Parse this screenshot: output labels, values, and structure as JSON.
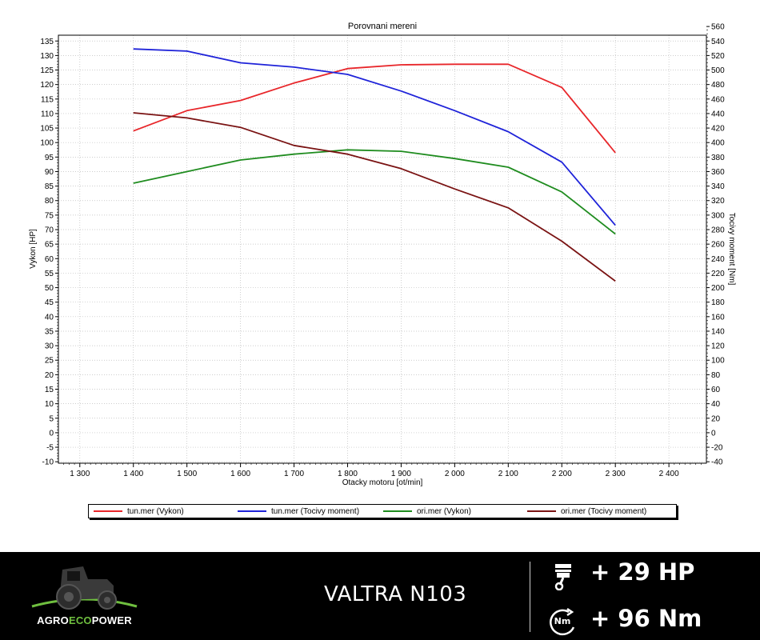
{
  "chart_data": {
    "type": "line",
    "title": "Porovnani mereni",
    "xlabel": "Otacky motoru [ot/min]",
    "ylabel": "Vykon [HP]",
    "y2label": "Tocivy moment [Nm]",
    "xlim": [
      1260,
      2470
    ],
    "ylim": [
      -10.5,
      137
    ],
    "y2lim": [
      -42,
      548
    ],
    "xticks": [
      1300,
      1400,
      1500,
      1600,
      1700,
      1800,
      1900,
      2000,
      2100,
      2200,
      2300,
      2400
    ],
    "xtick_labels": [
      "1 300",
      "1 400",
      "1 500",
      "1 600",
      "1 700",
      "1 800",
      "1 900",
      "2 000",
      "2 100",
      "2 200",
      "2 300",
      "2 400"
    ],
    "yticks": [
      -10,
      -5,
      0,
      5,
      10,
      15,
      20,
      25,
      30,
      35,
      40,
      45,
      50,
      55,
      60,
      65,
      70,
      75,
      80,
      85,
      90,
      95,
      100,
      105,
      110,
      115,
      120,
      125,
      130,
      135
    ],
    "ytick_labels": [
      "-10",
      "-5",
      "0",
      "5",
      "10",
      "15",
      "20",
      "25",
      "30",
      "35",
      "40",
      "45",
      "50",
      "55",
      "60",
      "65",
      "70",
      "75",
      "80",
      "85",
      "90",
      "95",
      "100",
      "105",
      "110",
      "115",
      "120",
      "125",
      "130",
      "135"
    ],
    "y2ticks": [
      -40,
      -20,
      0,
      20,
      40,
      60,
      80,
      100,
      120,
      140,
      160,
      180,
      200,
      220,
      240,
      260,
      280,
      300,
      320,
      340,
      360,
      380,
      400,
      420,
      440,
      460,
      480,
      500,
      520,
      540,
      560
    ],
    "y2tick_labels": [
      "-40",
      "-20",
      "0",
      "20",
      "40",
      "60",
      "80",
      "100",
      "120",
      "140",
      "160",
      "180",
      "200",
      "220",
      "240",
      "260",
      "280",
      "300",
      "320",
      "340",
      "360",
      "380",
      "400",
      "420",
      "440",
      "460",
      "480",
      "500",
      "520",
      "540",
      "560"
    ],
    "grid": true,
    "legend_position": "bottom",
    "x": [
      1400,
      1500,
      1600,
      1700,
      1800,
      1900,
      2000,
      2100,
      2200,
      2300
    ],
    "series": [
      {
        "name": "tun.mer  (Vykon)",
        "axis": "left",
        "color": "#e8262a",
        "values": [
          104,
          111,
          114.5,
          120.5,
          125.5,
          126.8,
          127,
          127,
          119,
          96.5
        ]
      },
      {
        "name": "tun.mer  (Tocivy moment)",
        "axis": "right",
        "color": "#1f23d9",
        "values": [
          529,
          526,
          510,
          504,
          494,
          471,
          444,
          415,
          373,
          286
        ]
      },
      {
        "name": "ori.mer  (Vykon)",
        "axis": "left",
        "color": "#1f8c1f",
        "values": [
          86,
          90,
          94,
          96,
          97.5,
          97,
          94.5,
          91.5,
          83,
          68.5
        ]
      },
      {
        "name": "ori.mer  (Tocivy moment)",
        "axis": "right",
        "color": "#7a1313",
        "values": [
          441,
          434,
          421,
          396,
          384,
          364,
          336,
          310,
          264,
          209
        ]
      }
    ]
  },
  "footer": {
    "brand_part1": "AGRO",
    "brand_part2": "ECO",
    "brand_part3": "POWER",
    "model": "VALTRA N103",
    "hp_gain": "+ 29 HP",
    "nm_gain": "+ 96 Nm",
    "nm_icon_text": "Nm",
    "icons": [
      "tractor-logo-icon",
      "piston-icon",
      "torque-gauge-icon"
    ]
  }
}
